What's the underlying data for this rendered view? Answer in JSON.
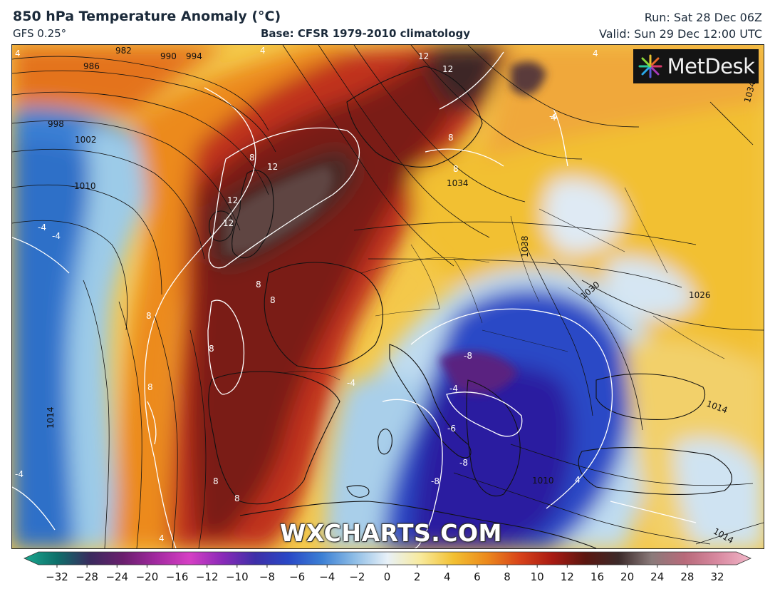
{
  "header": {
    "title": "850 hPa Temperature Anomaly (°C)",
    "model": "GFS 0.25°",
    "base": "Base: CFSR 1979-2010 climatology",
    "run": "Run: Sat 28 Dec 06Z",
    "valid": "Valid: Sun 29 Dec 12:00 UTC"
  },
  "logo": {
    "text": "MetDesk",
    "icon": "metdesk-star-icon"
  },
  "watermark": {
    "text": "WXCHARTS.COM"
  },
  "colorbar": {
    "ticks": [
      "−32",
      "−28",
      "−24",
      "−20",
      "−16",
      "−12",
      "−10",
      "−8",
      "−6",
      "−4",
      "−2",
      "0",
      "2",
      "4",
      "6",
      "8",
      "10",
      "12",
      "16",
      "20",
      "24",
      "28",
      "32"
    ],
    "colors": [
      "#1aa88f",
      "#0e6f6a",
      "#3a2a5e",
      "#6b1f6e",
      "#a22aa0",
      "#d63fc4",
      "#8a2ab8",
      "#3d2fa8",
      "#2948c6",
      "#3b7fd4",
      "#8ebde6",
      "#e8f1f8",
      "#f8ea9c",
      "#f2c032",
      "#ec8a1c",
      "#d8431a",
      "#a81a12",
      "#5a1610",
      "#3c2a2a",
      "#8a7a7a",
      "#b86a7a",
      "#d889a0",
      "#f2b6c8"
    ]
  },
  "map": {
    "isobar_labels": [
      "982",
      "986",
      "990",
      "994",
      "998",
      "1002",
      "1010",
      "1014",
      "1034",
      "1038",
      "1030",
      "1026",
      "1034",
      "1014",
      "1014",
      "1010"
    ],
    "anomaly_labels": [
      "4",
      "4",
      "4",
      "4",
      "12",
      "12",
      "8",
      "8",
      "8",
      "12",
      "12",
      "12",
      "-4",
      "-4",
      "8",
      "8",
      "8",
      "8",
      "8",
      "8",
      "-8",
      "-4",
      "-4",
      "-6",
      "-8",
      "-8",
      "4",
      "8",
      "-4",
      "4",
      "-4"
    ],
    "colors": {
      "sea_cold": "#3b7fd4",
      "pale": "#e8f1f8",
      "yellow": "#f2c032",
      "orange": "#ec8a1c",
      "red": "#c0301a",
      "darkred": "#6e1a12",
      "brown": "#4a2a28",
      "blue": "#2948c6",
      "navy": "#2a1fa0",
      "purple": "#5a2080"
    }
  }
}
